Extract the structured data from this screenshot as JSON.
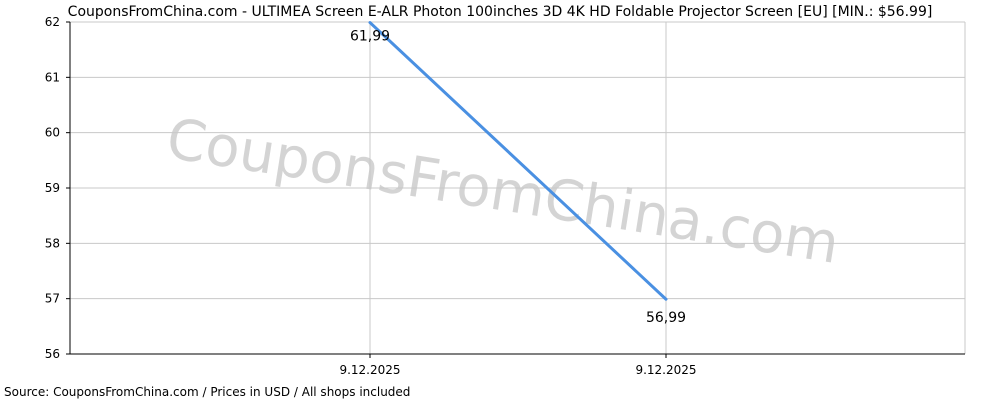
{
  "chart_data": {
    "type": "line",
    "title": "CouponsFromChina.com - ULTIMEA Screen E-ALR Photon 100inches 3D 4K HD Foldable Projector Screen [EU] [MIN.: $56.99]",
    "watermark": "CouponsFromChina.com",
    "footer": "Source: CouponsFromChina.com / Prices in USD / All shops included",
    "xlabel": "",
    "ylabel": "",
    "x_ticks": [
      "9.12.2025",
      "9.12.2025"
    ],
    "y_ticks": [
      "56",
      "57",
      "58",
      "59",
      "60",
      "61",
      "62"
    ],
    "ylim": [
      56,
      62
    ],
    "grid": true,
    "series": [
      {
        "values": [
          61.99,
          56.99
        ],
        "labels": [
          "61,99",
          "56,99"
        ],
        "color": "#4a90e2"
      }
    ],
    "colors": {
      "line": "#4a90e2",
      "grid": "#c8c8c8",
      "axis": "#000000",
      "watermark": "#d4d4d4"
    }
  }
}
